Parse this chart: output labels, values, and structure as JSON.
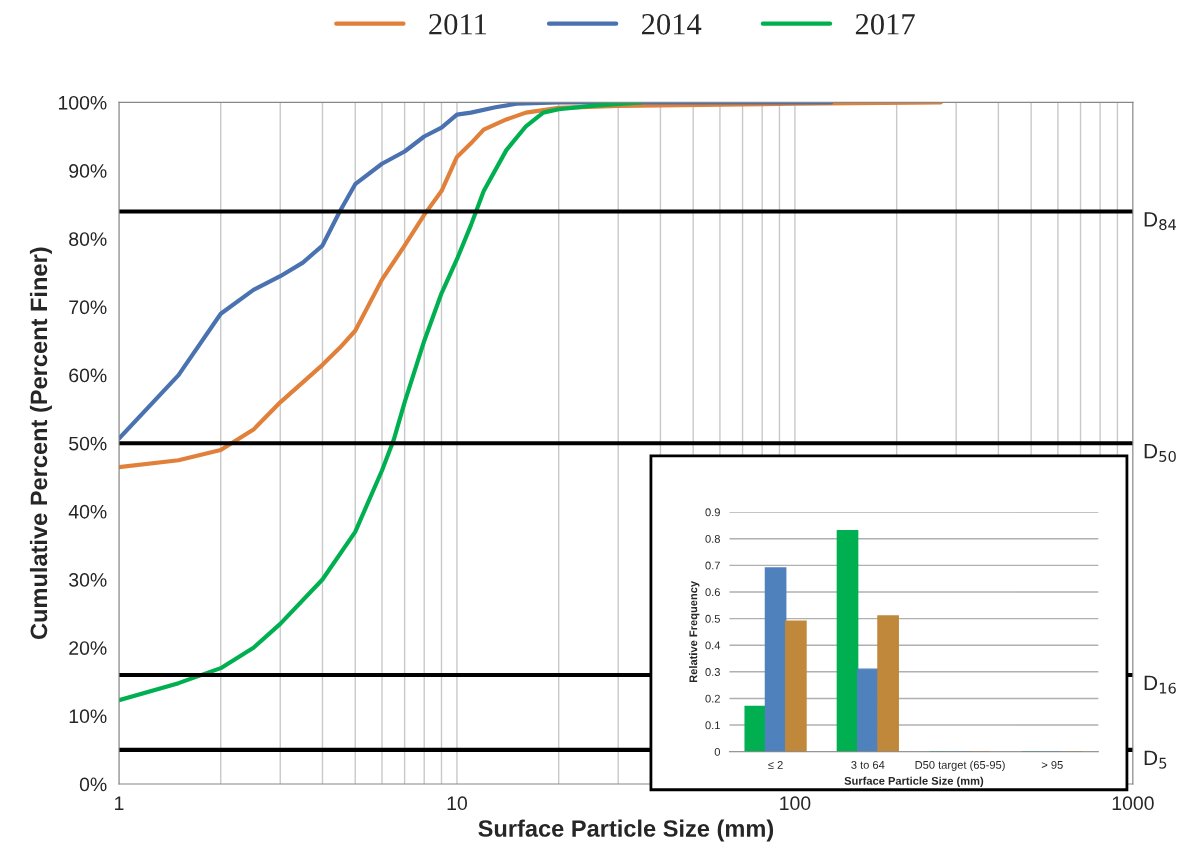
{
  "chart_data": [
    {
      "type": "line",
      "xlabel": "Surface Particle Size (mm)",
      "ylabel": "Cumulative Percent (Percent Finer)",
      "log": "x",
      "xlim": [
        1,
        1000
      ],
      "xticks": [
        1,
        10,
        100,
        1000
      ],
      "ylim": [
        0,
        100
      ],
      "yticks": [
        {
          "value": 0,
          "label": "0%"
        },
        {
          "value": 10,
          "label": "10%"
        },
        {
          "value": 20,
          "label": "20%"
        },
        {
          "value": 30,
          "label": "30%"
        },
        {
          "value": 40,
          "label": "40%"
        },
        {
          "value": 50,
          "label": "50%"
        },
        {
          "value": 60,
          "label": "60%"
        },
        {
          "value": 70,
          "label": "70%"
        },
        {
          "value": 80,
          "label": "80%"
        },
        {
          "value": 90,
          "label": "90%"
        },
        {
          "value": 100,
          "label": "100%"
        }
      ],
      "grid": "x",
      "legend": "top",
      "marker": "none",
      "line_style": "solid",
      "series": [
        {
          "name": "2011",
          "color": "#e0803a",
          "x": [
            1,
            1.5,
            2,
            2.5,
            3,
            4,
            4.5,
            5,
            6,
            7,
            8,
            9,
            10,
            11,
            12,
            14,
            16,
            20,
            30,
            100,
            270
          ],
          "values": [
            46.5,
            47.5,
            49,
            52,
            56,
            61.5,
            64,
            66.5,
            74,
            79,
            83.5,
            87,
            92,
            94,
            96,
            97.5,
            98.5,
            99.2,
            99.5,
            99.8,
            100
          ]
        },
        {
          "name": "2014",
          "color": "#4a72b0",
          "x": [
            1,
            1.5,
            2,
            2.5,
            3,
            3.5,
            4,
            4.5,
            5,
            6,
            7,
            8,
            9,
            10,
            11,
            13,
            15,
            20,
            50,
            128
          ],
          "values": [
            50.7,
            60,
            69,
            72.5,
            74.5,
            76.5,
            79,
            84,
            88,
            91,
            92.8,
            95,
            96.3,
            98.2,
            98.5,
            99.3,
            99.8,
            100,
            100,
            100
          ]
        },
        {
          "name": "2017",
          "color": "#00b050",
          "x": [
            1,
            1.5,
            2,
            2.5,
            3,
            4,
            5,
            6,
            6.5,
            7,
            8,
            9,
            10,
            11,
            12,
            14,
            16,
            18,
            20,
            25,
            35
          ],
          "values": [
            12.3,
            14.8,
            17,
            20,
            23.5,
            30,
            37,
            46,
            50.5,
            56,
            65,
            72,
            77,
            82,
            87,
            93,
            96.5,
            98.5,
            99,
            99.5,
            100
          ]
        }
      ],
      "ref_lines": [
        {
          "axis": "y",
          "value": 84,
          "label": "D$_{84}$",
          "color": "#000000"
        },
        {
          "axis": "y",
          "value": 50,
          "label": "D$_{50}$",
          "color": "#000000"
        },
        {
          "axis": "y",
          "value": 16,
          "label": "D$_{16}$",
          "color": "#000000"
        },
        {
          "axis": "y",
          "value": 5,
          "label": "D$_{5}$",
          "color": "#000000"
        }
      ]
    },
    {
      "type": "bar",
      "xlabel": "Surface Particle Size (mm)",
      "ylabel": "Relative Frequency",
      "categories": [
        "≤ 2",
        "3 to 64",
        "D50 target (65-95)",
        "> 95"
      ],
      "ylim": [
        0,
        0.9
      ],
      "yticks": [
        0,
        0.1,
        0.2,
        0.3,
        0.4,
        0.5,
        0.6,
        0.7,
        0.8,
        0.9
      ],
      "grid": "y",
      "series": [
        {
          "color": "#00b050",
          "values": [
            0.17,
            0.83,
            0,
            0
          ]
        },
        {
          "color": "#4f81bd",
          "values": [
            0.69,
            0.31,
            0,
            0
          ]
        },
        {
          "color": "#c0883a",
          "values": [
            0.49,
            0.51,
            0,
            0
          ]
        }
      ]
    }
  ]
}
